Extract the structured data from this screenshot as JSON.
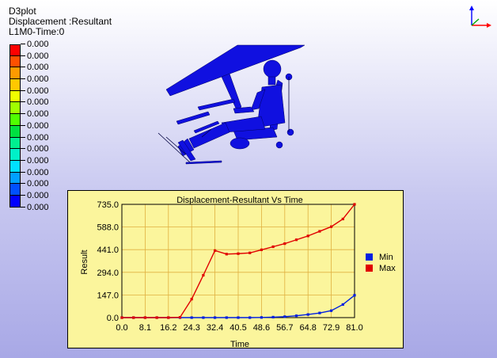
{
  "header": {
    "app": "D3plot",
    "component": "Displacement :Resultant",
    "state": "L1M0-Time:0"
  },
  "legend": {
    "colors": [
      "#ff0000",
      "#ff5000",
      "#ff9a00",
      "#ffc800",
      "#f0ff00",
      "#a0ff00",
      "#50ff00",
      "#00e040",
      "#00f090",
      "#00f0c8",
      "#00e0ff",
      "#00a0ff",
      "#0050ff",
      "#0000ff"
    ],
    "labels": [
      "0.000",
      "0.000",
      "0.000",
      "0.000",
      "0.000",
      "0.000",
      "0.000",
      "0.000",
      "0.000",
      "0.000",
      "0.000",
      "0.000",
      "0.000",
      "0.000",
      "0.000"
    ]
  },
  "model": {
    "color": "#1010e0"
  },
  "chart_data": {
    "type": "line",
    "title": "Displacement-Resultant Vs Time",
    "xlabel": "Time",
    "ylabel": "Result",
    "xlim": [
      0,
      81
    ],
    "ylim": [
      0,
      735
    ],
    "x_ticks": [
      "0.0",
      "8.1",
      "16.2",
      "24.3",
      "32.4",
      "40.5",
      "48.6",
      "56.7",
      "64.8",
      "72.9",
      "81.0"
    ],
    "y_ticks": [
      "0.0",
      "147.0",
      "294.0",
      "441.0",
      "588.0",
      "735.0"
    ],
    "grid": true,
    "legend_position": "right",
    "x": [
      0,
      4.05,
      8.1,
      12.15,
      16.2,
      20.25,
      24.3,
      28.35,
      32.4,
      36.45,
      40.5,
      44.55,
      48.6,
      52.65,
      56.7,
      60.75,
      64.8,
      68.85,
      72.9,
      76.95,
      81.0
    ],
    "series": [
      {
        "name": "Min",
        "color": "#0020e0",
        "values": [
          0,
          0,
          0,
          0,
          0,
          0,
          0,
          0,
          0,
          0,
          0,
          0,
          1,
          3,
          6,
          12,
          20,
          30,
          45,
          85,
          145
        ]
      },
      {
        "name": "Max",
        "color": "#e00000",
        "values": [
          0,
          0,
          0,
          0,
          0,
          2,
          120,
          275,
          435,
          412,
          415,
          420,
          440,
          460,
          480,
          505,
          530,
          560,
          590,
          640,
          735
        ]
      }
    ]
  }
}
